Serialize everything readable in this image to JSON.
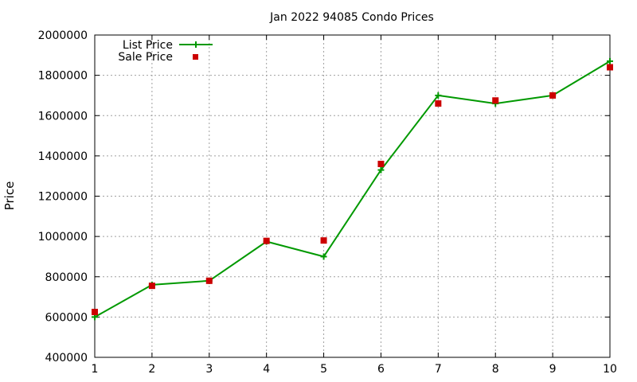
{
  "chart_data": {
    "type": "line",
    "title": "Jan 2022 94085 Condo Prices",
    "xlabel": "",
    "ylabel": "Price",
    "x": [
      1,
      2,
      3,
      4,
      5,
      6,
      7,
      8,
      9,
      10
    ],
    "xlim": [
      1,
      10
    ],
    "ylim": [
      400000,
      2000000
    ],
    "x_ticks": [
      "1",
      "2",
      "3",
      "4",
      "5",
      "6",
      "7",
      "8",
      "9",
      "10"
    ],
    "y_ticks": [
      "400000",
      "600000",
      "800000",
      "1000000",
      "1200000",
      "1400000",
      "1600000",
      "1800000",
      "2000000"
    ],
    "grid": true,
    "legend_position": "top-left",
    "series": [
      {
        "name": "List Price",
        "style": "line-with-plus-markers",
        "color": "#009900",
        "values": [
          600000,
          760000,
          780000,
          975000,
          900000,
          1330000,
          1700000,
          1660000,
          1700000,
          1870000
        ]
      },
      {
        "name": "Sale Price",
        "style": "square-markers",
        "color": "#cc0000",
        "values": [
          625000,
          755000,
          780000,
          978000,
          980000,
          1360000,
          1660000,
          1675000,
          1700000,
          1840000
        ]
      }
    ]
  }
}
